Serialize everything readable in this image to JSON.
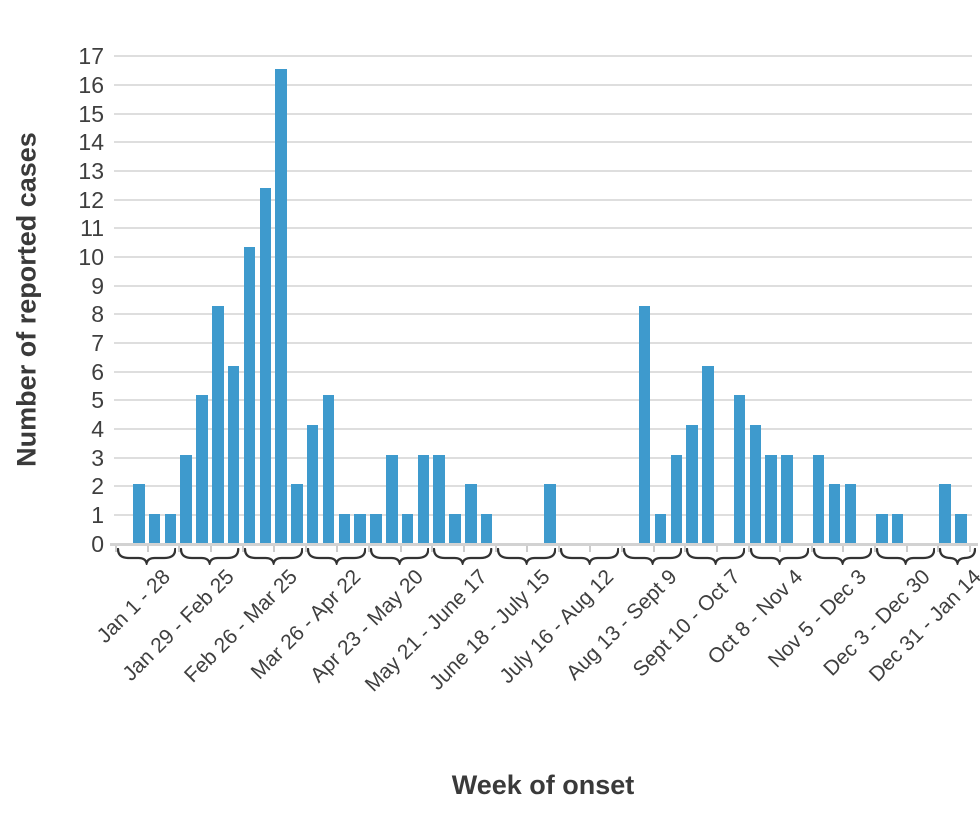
{
  "chart_data": {
    "type": "bar",
    "title": "",
    "xlabel": "Week of onset",
    "ylabel": "Number of reported cases",
    "ylim": [
      0,
      17
    ],
    "yticks": [
      0,
      1,
      2,
      3,
      4,
      5,
      6,
      7,
      8,
      9,
      10,
      11,
      12,
      13,
      14,
      15,
      16,
      17
    ],
    "grid": "horizontal",
    "legend": "none",
    "bar_color": "#3e9acd",
    "x_axis_note": "weekly bars grouped into 4-week periods marked by braces",
    "groups": [
      {
        "label": "Jan 1 - 28",
        "weekly_values": [
          0,
          2,
          1,
          1
        ]
      },
      {
        "label": "Jan 29 - Feb 25",
        "weekly_values": [
          3,
          5,
          8,
          6
        ]
      },
      {
        "label": "Feb 26 - Mar 25",
        "weekly_values": [
          10,
          12,
          16,
          2
        ]
      },
      {
        "label": "Mar 26 - Apr 22",
        "weekly_values": [
          4,
          5,
          1,
          1
        ]
      },
      {
        "label": "Apr 23 - May 20",
        "weekly_values": [
          1,
          3,
          1,
          3
        ]
      },
      {
        "label": "May 21 - June 17",
        "weekly_values": [
          3,
          1,
          2,
          1
        ]
      },
      {
        "label": "June 18 - July 15",
        "weekly_values": [
          0,
          0,
          0,
          2
        ]
      },
      {
        "label": "July 16 - Aug 12",
        "weekly_values": [
          0,
          0,
          0,
          0
        ]
      },
      {
        "label": "Aug 13 - Sept 9",
        "weekly_values": [
          0,
          8,
          1,
          3
        ]
      },
      {
        "label": "Sept 10 - Oct 7",
        "weekly_values": [
          4,
          6,
          0,
          5
        ]
      },
      {
        "label": "Oct 8 - Nov 4",
        "weekly_values": [
          4,
          3,
          3,
          0
        ]
      },
      {
        "label": "Nov 5 - Dec 3",
        "weekly_values": [
          3,
          2,
          2,
          0
        ]
      },
      {
        "label": "Dec 3 - Dec 30",
        "weekly_values": [
          1,
          1,
          0,
          0
        ]
      },
      {
        "label": "Dec 31 - Jan 14",
        "weekly_values": [
          2,
          1
        ]
      }
    ]
  }
}
